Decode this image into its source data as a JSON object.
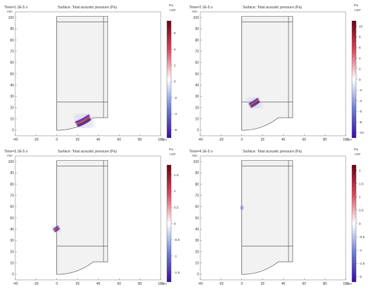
{
  "chart_data": [
    {
      "type": "heatmap",
      "time_label": "Time=1.1E-5 s",
      "title": "Surface: Total acoustic pressure (Pa)",
      "xlabel": "mm",
      "ylabel": "mm",
      "xlim": [
        -40,
        100
      ],
      "ylim": [
        -5,
        105
      ],
      "xticks": [
        "-40",
        "-20",
        "0",
        "20",
        "40",
        "60",
        "80",
        "100"
      ],
      "yticks": [
        "0",
        "10",
        "20",
        "30",
        "40",
        "50",
        "60",
        "70",
        "80",
        "90",
        "100"
      ],
      "colorbar": {
        "unit": "Pa",
        "exponent": "×10⁵",
        "ticks": [
          "6",
          "4",
          "2",
          "0",
          "-2",
          "-4",
          "-6"
        ],
        "min": -7,
        "max": 7.5
      },
      "features": [
        {
          "kind": "arc",
          "cx": 48,
          "cy": -38,
          "r": 52,
          "a0": 108,
          "a1": 124,
          "width": 6,
          "intensity": 1.0
        }
      ]
    },
    {
      "type": "heatmap",
      "time_label": "Time=2.1E-5 s",
      "title": "Surface: Total acoustic pressure (Pa)",
      "xlabel": "mm",
      "ylabel": "mm",
      "xlim": [
        -40,
        100
      ],
      "ylim": [
        -5,
        105
      ],
      "xticks": [
        "-40",
        "-20",
        "0",
        "20",
        "40",
        "60",
        "80",
        "100"
      ],
      "yticks": [
        "0",
        "10",
        "20",
        "30",
        "40",
        "50",
        "60",
        "70",
        "80",
        "90",
        "100"
      ],
      "colorbar": {
        "unit": "Pa",
        "exponent": "×10⁵",
        "ticks": [
          "10",
          "8",
          "6",
          "4",
          "2",
          "0",
          "-2",
          "-4",
          "-6",
          "-8",
          "-10"
        ],
        "min": -11,
        "max": 11
      },
      "features": [
        {
          "kind": "arc",
          "cx": 48,
          "cy": -38,
          "r": 72,
          "a0": 116,
          "a1": 124,
          "width": 5,
          "intensity": 1.0
        }
      ]
    },
    {
      "type": "heatmap",
      "time_label": "Time=3.1E-5 s",
      "title": "Surface: Total acoustic pressure (Pa)",
      "xlabel": "mm",
      "ylabel": "mm",
      "xlim": [
        -40,
        100
      ],
      "ylim": [
        -5,
        105
      ],
      "xticks": [
        "-40",
        "-20",
        "0",
        "20",
        "40",
        "60",
        "80",
        "100"
      ],
      "yticks": [
        "0",
        "10",
        "20",
        "30",
        "40",
        "50",
        "60",
        "70",
        "80",
        "90",
        "100"
      ],
      "colorbar": {
        "unit": "Pa",
        "exponent": "×10⁵",
        "ticks": [
          "1.5",
          "1",
          "0.5",
          "0",
          "-0.5",
          "-1",
          "-1.5"
        ],
        "min": -1.8,
        "max": 1.8
      },
      "features": [
        {
          "kind": "arc",
          "cx": 48,
          "cy": -38,
          "r": 92,
          "a0": 120,
          "a1": 123.5,
          "width": 4,
          "intensity": 1.0
        }
      ]
    },
    {
      "type": "heatmap",
      "time_label": "Time=4.1E-5 s",
      "title": "Surface: Total acoustic pressure (Pa)",
      "xlabel": "mm",
      "ylabel": "mm",
      "xlim": [
        -40,
        100
      ],
      "ylim": [
        -5,
        105
      ],
      "xticks": [
        "-40",
        "-20",
        "0",
        "20",
        "40",
        "60",
        "80",
        "100"
      ],
      "yticks": [
        "0",
        "10",
        "20",
        "30",
        "40",
        "50",
        "60",
        "70",
        "80",
        "90",
        "100"
      ],
      "colorbar": {
        "unit": "Pa",
        "exponent": "×10⁷",
        "ticks": [
          "2",
          "1.5",
          "1",
          "0.5",
          "0",
          "-0.5",
          "-1",
          "-1.5",
          "-2"
        ],
        "min": -2.2,
        "max": 2.2
      },
      "features": [
        {
          "kind": "spot",
          "x": 0,
          "y": 59,
          "r": 2.5,
          "intensity": 0.5
        }
      ]
    }
  ],
  "colors": {
    "background": "#ffffff",
    "domain_fill": "#f2f2f2",
    "outline": "#444444",
    "colormap": [
      "#3a0ca3",
      "#6a7fd8",
      "#ffffff",
      "#e0455b",
      "#6b0010"
    ]
  }
}
